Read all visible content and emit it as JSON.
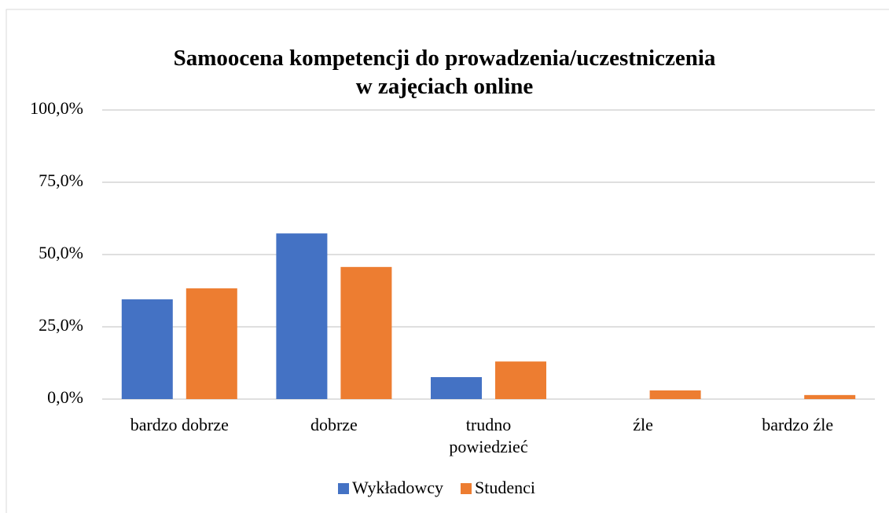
{
  "chart_data": {
    "type": "bar",
    "title": [
      "Samoocena kompetencji do prowadzenia/uczestniczenia",
      "w zajęciach online"
    ],
    "categories": [
      "bardzo dobrze",
      "dobrze",
      "trudno powiedzieć",
      "źle",
      "bardzo źle"
    ],
    "series": [
      {
        "name": "Wykładowcy",
        "color": "#4472c4",
        "values": [
          34.5,
          57.3,
          7.6,
          0,
          0
        ]
      },
      {
        "name": "Studenci",
        "color": "#ed7d31",
        "values": [
          38.3,
          45.7,
          13.0,
          3.0,
          1.4
        ]
      }
    ],
    "ylim": [
      0,
      100
    ],
    "yticks": [
      {
        "value": 0,
        "label": "0,0%"
      },
      {
        "value": 25,
        "label": "25,0%"
      },
      {
        "value": 50,
        "label": "50,0%"
      },
      {
        "value": 75,
        "label": "75,0%"
      },
      {
        "value": 100,
        "label": "100,0%"
      }
    ],
    "grid": true,
    "legend": "bottom"
  }
}
